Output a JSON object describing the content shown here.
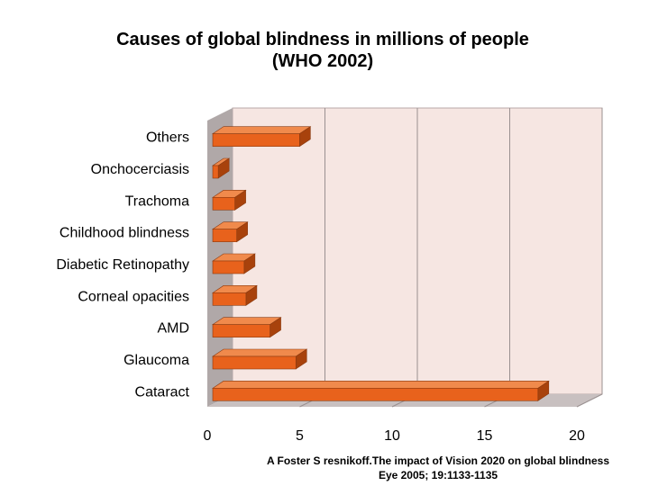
{
  "title_line1": "Causes of global blindness in millions of people",
  "title_line2": "(WHO 2002)",
  "citation_line1": "A Foster S resnikoff.The impact of Vision 2020 on global blindness",
  "citation_line2": "Eye 2005; 19:1133-1135",
  "colors": {
    "bar_front": "#e8621c",
    "bar_top": "#f08a4c",
    "bar_side": "#a8420c",
    "plot_back": "#f6e6e2",
    "floor": "#c8c0c0",
    "wall": "#b0a8a8"
  },
  "chart_data": {
    "type": "bar",
    "orientation": "horizontal",
    "style": "3d",
    "title": "Causes of global blindness in millions of people (WHO 2002)",
    "categories": [
      "Cataract",
      "Glaucoma",
      "AMD",
      "Corneal opacities",
      "Diabetic Retinopathy",
      "Childhood blindness",
      "Trachoma",
      "Onchocerciasis",
      "Others"
    ],
    "values": [
      17.6,
      4.5,
      3.1,
      1.8,
      1.7,
      1.3,
      1.2,
      0.3,
      4.7
    ],
    "xlim": [
      0,
      20
    ],
    "xticks": [
      "0",
      "5",
      "10",
      "15",
      "20"
    ],
    "grid": true
  }
}
